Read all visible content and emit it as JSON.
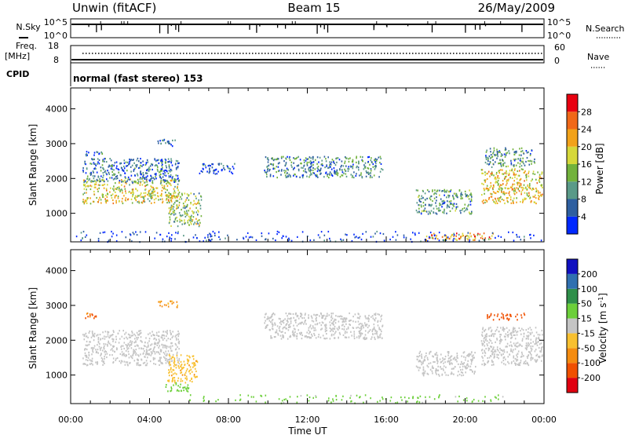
{
  "header": {
    "radar": "Unwin (fitACF)",
    "beam": "Beam 15",
    "date": "26/May/2009"
  },
  "nsky": {
    "label": "N.Sky",
    "tick_top": "10^5",
    "tick_bottom": "10^0",
    "right_label": "N.Search",
    "right_tick_top": "10^5",
    "right_tick_bottom": "10^0"
  },
  "freq": {
    "label_line1": "Freq.",
    "label_line2": "[MHz]",
    "tick_top": "18",
    "tick_bottom": "8",
    "right_label": "Nave",
    "right_tick_top": "60",
    "right_tick_bottom": "0"
  },
  "cpid": {
    "label": "CPID",
    "text": "normal (fast stereo) 153"
  },
  "chart_data": [
    {
      "type": "heatmap",
      "title": "",
      "quantity": "Power",
      "ylabel": "Slant Range [km]",
      "ylim": [
        180,
        4600
      ],
      "yticks": [
        "1000",
        "2000",
        "3000",
        "4000"
      ],
      "yticks_values": [
        1000,
        2000,
        3000,
        4000
      ],
      "colorbar_label": "Power [dB]",
      "colorbar_ticks": [
        "4",
        "8",
        "12",
        "16",
        "20",
        "24",
        "28"
      ],
      "colorbar_range": [
        0,
        32
      ],
      "colorbar_colors": [
        "#0028ff",
        "#2e5fa0",
        "#5a9a88",
        "#72b23c",
        "#d6d83a",
        "#f2a21a",
        "#f06818",
        "#e80010"
      ],
      "regions": [
        {
          "t0": 0.6,
          "t1": 5.5,
          "r0": 1300,
          "r1": 2000,
          "level": 18
        },
        {
          "t0": 0.6,
          "t1": 5.5,
          "r0": 1900,
          "r1": 2600,
          "level": 7
        },
        {
          "t0": 0.6,
          "t1": 1.6,
          "r0": 2650,
          "r1": 2800,
          "level": 6
        },
        {
          "t0": 4.4,
          "t1": 5.4,
          "r0": 2950,
          "r1": 3150,
          "level": 5
        },
        {
          "t0": 4.9,
          "t1": 6.6,
          "r0": 650,
          "r1": 1600,
          "level": 14
        },
        {
          "t0": 6.5,
          "t1": 8.3,
          "r0": 2150,
          "r1": 2450,
          "level": 4
        },
        {
          "t0": 9.8,
          "t1": 15.8,
          "r0": 2050,
          "r1": 2650,
          "level": 9
        },
        {
          "t0": 17.5,
          "t1": 20.3,
          "r0": 1000,
          "r1": 1700,
          "level": 10
        },
        {
          "t0": 20.8,
          "t1": 23.9,
          "r0": 1300,
          "r1": 2300,
          "level": 19
        },
        {
          "t0": 21.0,
          "t1": 23.5,
          "r0": 2350,
          "r1": 2900,
          "level": 10
        },
        {
          "t0": 18.0,
          "t1": 21.5,
          "r0": 250,
          "r1": 450,
          "level": 22
        },
        {
          "t0": 0.0,
          "t1": 24.0,
          "r0": 200,
          "r1": 500,
          "level": 3
        }
      ]
    },
    {
      "type": "heatmap",
      "title": "",
      "quantity": "Velocity",
      "ylabel": "Slant Range [km]",
      "ylim": [
        180,
        4600
      ],
      "yticks": [
        "1000",
        "2000",
        "3000",
        "4000"
      ],
      "yticks_values": [
        1000,
        2000,
        3000,
        4000
      ],
      "xlabel": "Time UT",
      "xticks": [
        "00:00",
        "04:00",
        "08:00",
        "12:00",
        "16:00",
        "20:00",
        "00:00"
      ],
      "xlim_hours": [
        0,
        24
      ],
      "colorbar_label": "Velocity [m s^-1]",
      "colorbar_ticks": [
        "-200",
        "-100",
        "-50",
        "-15",
        "15",
        "50",
        "100",
        "200"
      ],
      "colorbar_colors": [
        "#e00010",
        "#f05000",
        "#f58c10",
        "#f8c030",
        "#c4c4c4",
        "#6ccf3a",
        "#2f8f4a",
        "#3070b0",
        "#1010c0"
      ],
      "regions": [
        {
          "t0": 0.6,
          "t1": 5.5,
          "r0": 1300,
          "r1": 2300,
          "level": 0
        },
        {
          "t0": 4.9,
          "t1": 6.4,
          "r0": 800,
          "r1": 1600,
          "level": -40
        },
        {
          "t0": 4.8,
          "t1": 6.0,
          "r0": 550,
          "r1": 800,
          "level": 30
        },
        {
          "t0": 0.6,
          "t1": 1.5,
          "r0": 2650,
          "r1": 2800,
          "level": -120
        },
        {
          "t0": 4.4,
          "t1": 5.4,
          "r0": 2950,
          "r1": 3150,
          "level": -60
        },
        {
          "t0": 9.8,
          "t1": 15.8,
          "r0": 2050,
          "r1": 2800,
          "level": 0
        },
        {
          "t0": 17.5,
          "t1": 20.5,
          "r0": 1000,
          "r1": 1700,
          "level": 0
        },
        {
          "t0": 20.8,
          "t1": 23.9,
          "r0": 1300,
          "r1": 2400,
          "level": 0
        },
        {
          "t0": 21.1,
          "t1": 23.0,
          "r0": 2600,
          "r1": 2800,
          "level": -150
        },
        {
          "t0": 6.0,
          "t1": 22.0,
          "r0": 200,
          "r1": 450,
          "level": 25
        }
      ]
    }
  ]
}
